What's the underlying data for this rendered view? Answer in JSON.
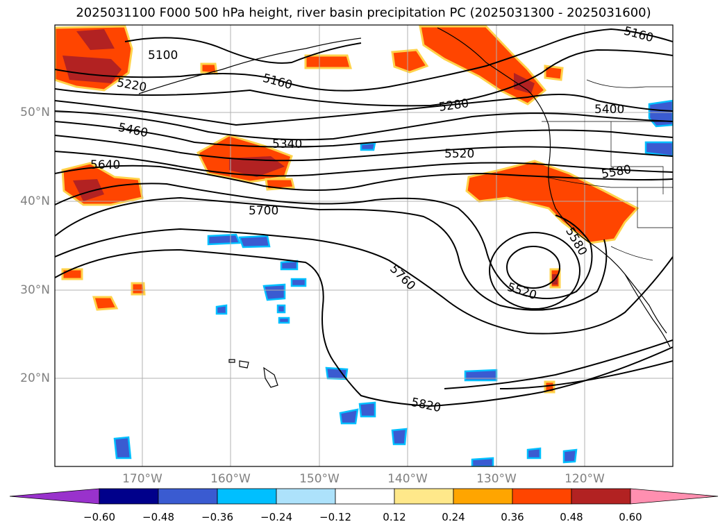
{
  "title": "2025031100 F000 500 hPa height, river basin precipitation PC (2025031300 - 2025031600)",
  "axes": {
    "lat_labels": [
      "50°N",
      "40°N",
      "30°N",
      "20°N"
    ],
    "lon_labels": [
      "170°W",
      "160°W",
      "150°W",
      "140°W",
      "130°W",
      "120°W"
    ]
  },
  "contours": {
    "labels": [
      "5100",
      "5160",
      "5160",
      "5220",
      "5280",
      "5340",
      "5400",
      "5460",
      "5520",
      "5520",
      "5580",
      "5640",
      "5700",
      "5760",
      "5580",
      "5820"
    ]
  },
  "colorbar": {
    "ticks": [
      "−0.60",
      "−0.48",
      "−0.36",
      "−0.24",
      "−0.12",
      "0.12",
      "0.24",
      "0.36",
      "0.48",
      "0.60"
    ],
    "colors": [
      "#9932cc",
      "#00008b",
      "#3a5bd1",
      "#00bfff",
      "#ade2fb",
      "#ffffff",
      "#ffe88a",
      "#ffa500",
      "#ff4500",
      "#b22222",
      "#ff8fb0"
    ]
  },
  "colors": {
    "positive_orange": "#ff4500",
    "positive_red": "#b22222",
    "positive_yellow": "#ffd24a",
    "negative_blue": "#3a5bd1",
    "negative_cyan": "#00bfff",
    "grid": "#b0b0b0"
  }
}
